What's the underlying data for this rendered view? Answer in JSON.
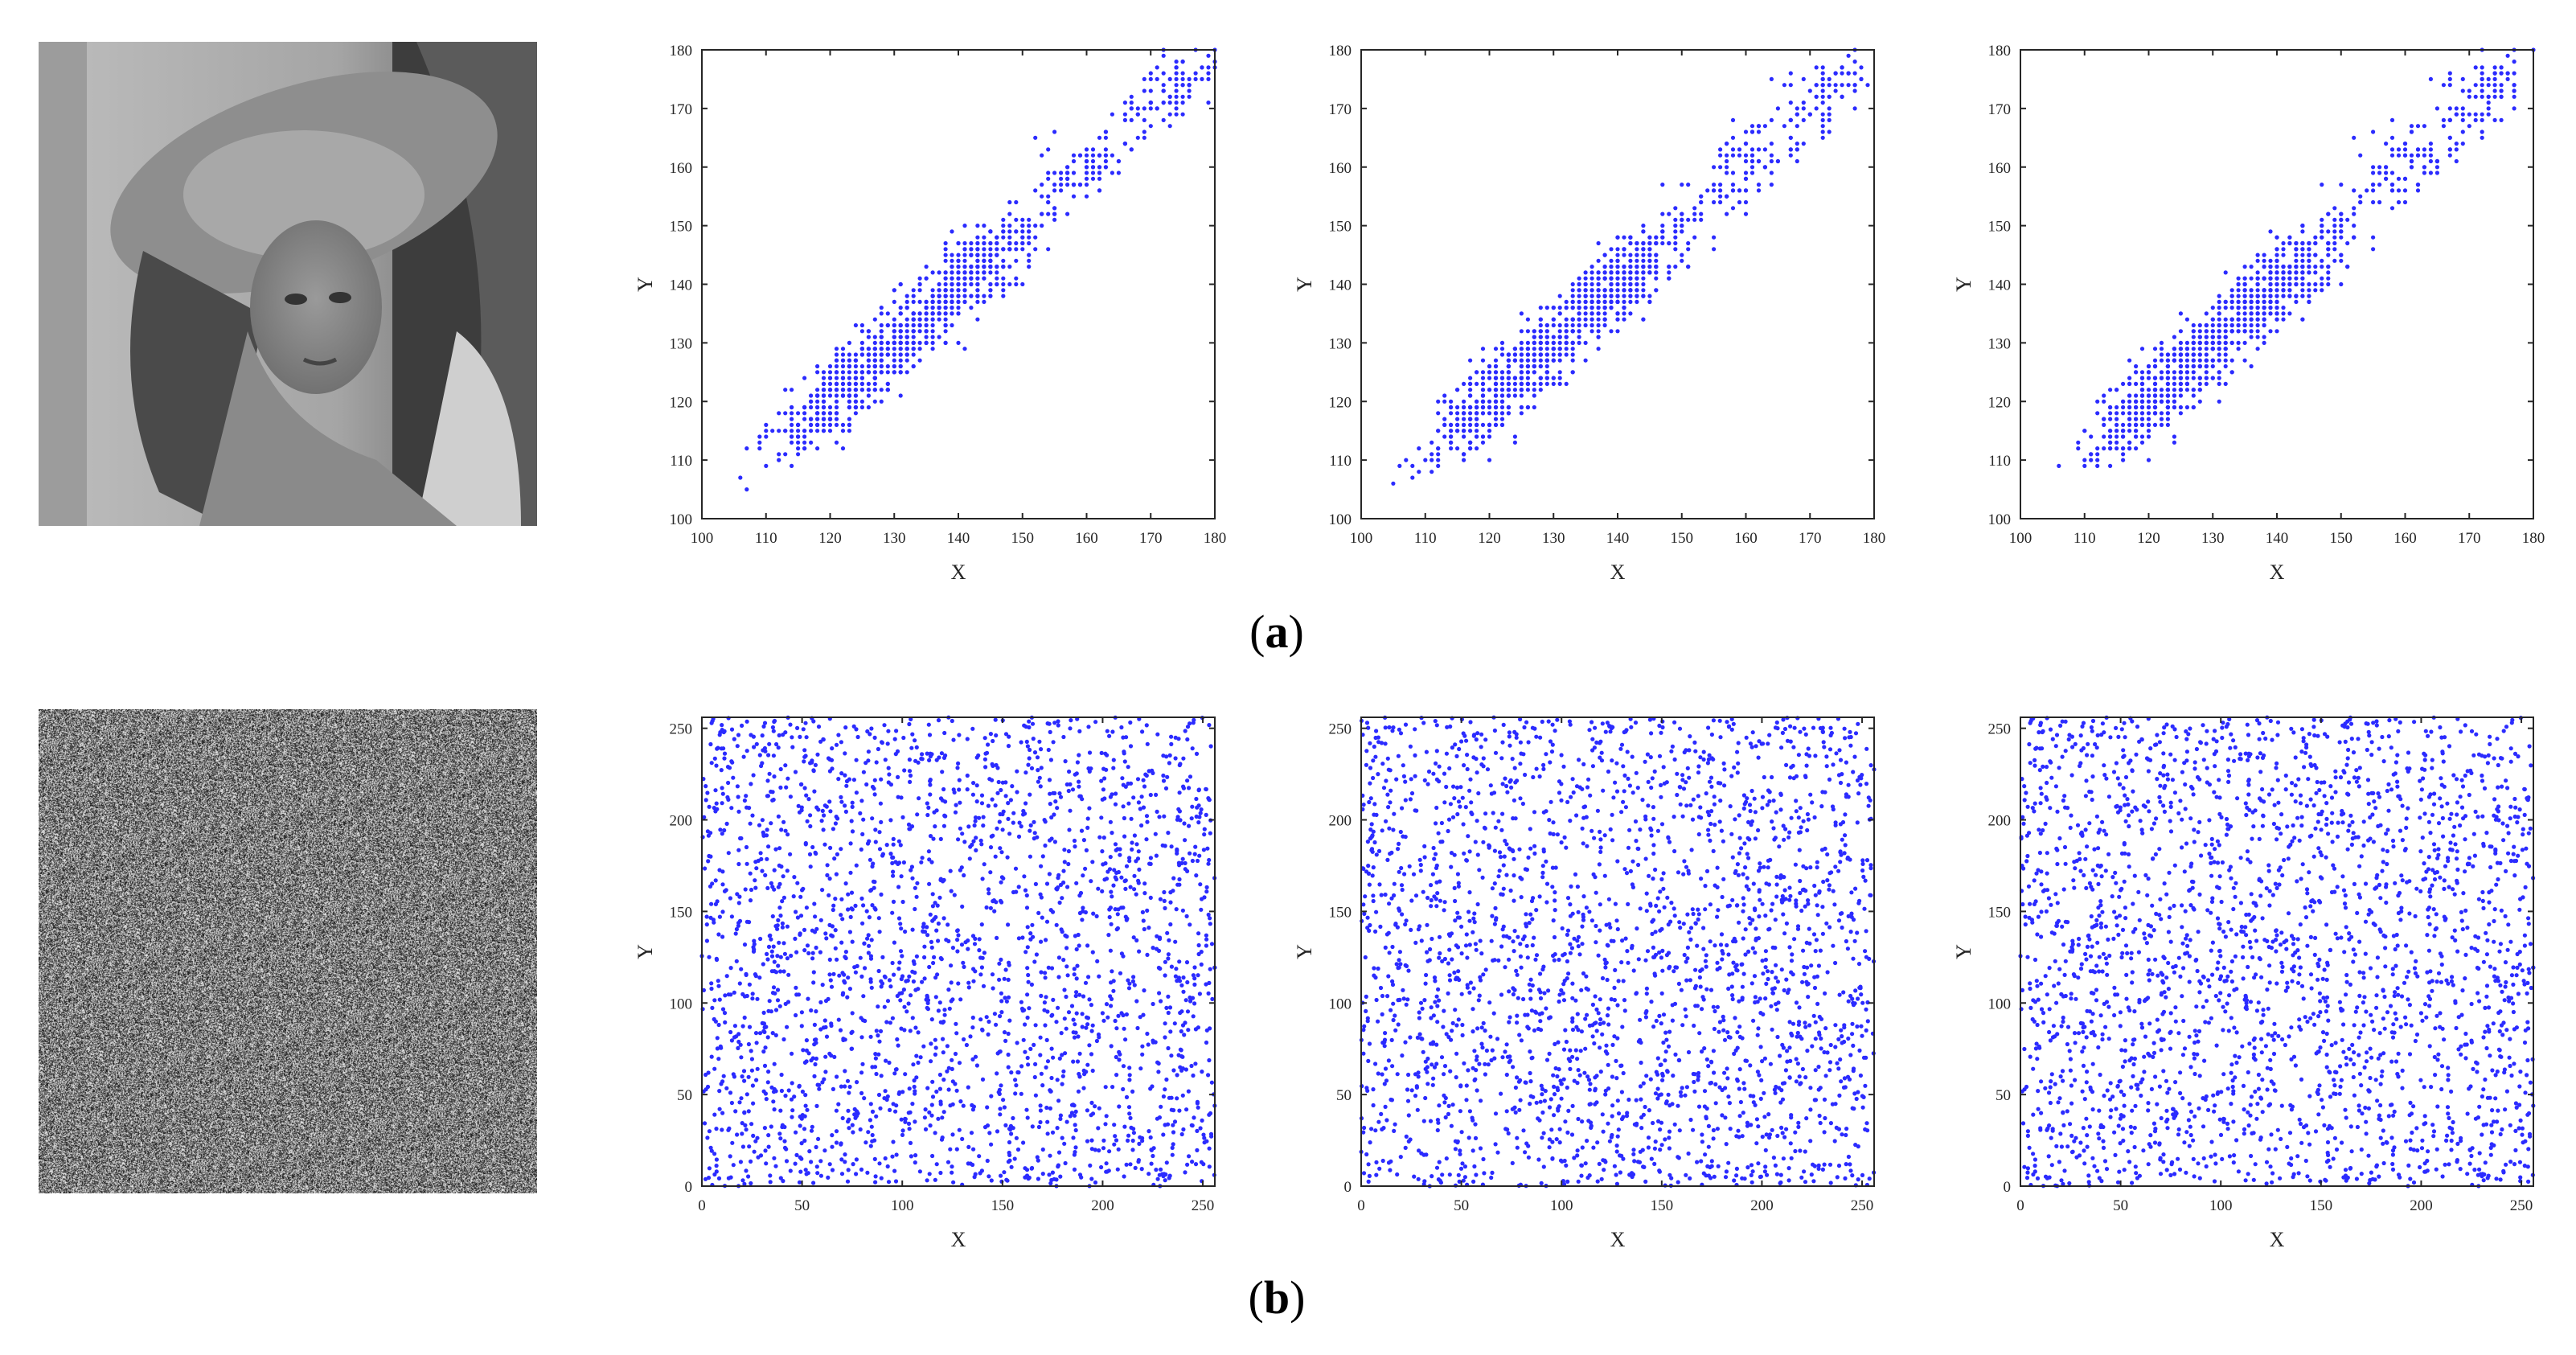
{
  "captions": {
    "a_open": "(",
    "a_letter": "a",
    "a_close": ")",
    "b_open": "(",
    "b_letter": "b",
    "b_close": ")"
  },
  "colors": {
    "points": "#2b2bff",
    "axes": "#262626"
  },
  "images": [
    {
      "row": "a",
      "content": "grayscale portrait photo (woman with hat)"
    },
    {
      "row": "b",
      "content": "grayscale noise image"
    }
  ],
  "chart_data": [
    {
      "row": "a",
      "type": "scatter",
      "direction": "horizontal",
      "xlabel": "X",
      "ylabel": "Y",
      "xlim": [
        100,
        180
      ],
      "ylim": [
        100,
        180
      ],
      "xticks": [
        100,
        110,
        120,
        130,
        140,
        150,
        160,
        170,
        180
      ],
      "yticks": [
        100,
        110,
        120,
        130,
        140,
        150,
        160,
        170,
        180
      ],
      "pattern": "strongly correlated along y = x",
      "clusters": [
        [
          120,
          120
        ],
        [
          140,
          140
        ],
        [
          160,
          160
        ],
        [
          173,
          173
        ]
      ]
    },
    {
      "row": "a",
      "type": "scatter",
      "direction": "vertical",
      "xlabel": "X",
      "ylabel": "Y",
      "xlim": [
        100,
        180
      ],
      "ylim": [
        100,
        180
      ],
      "xticks": [
        100,
        110,
        120,
        130,
        140,
        150,
        160,
        170,
        180
      ],
      "yticks": [
        100,
        110,
        120,
        130,
        140,
        150,
        160,
        170,
        180
      ],
      "pattern": "strongly correlated along y = x",
      "clusters": [
        [
          120,
          120
        ],
        [
          140,
          140
        ],
        [
          160,
          160
        ],
        [
          173,
          173
        ]
      ]
    },
    {
      "row": "a",
      "type": "scatter",
      "direction": "diagonal",
      "xlabel": "X",
      "ylabel": "Y",
      "xlim": [
        100,
        180
      ],
      "ylim": [
        100,
        180
      ],
      "xticks": [
        100,
        110,
        120,
        130,
        140,
        150,
        160,
        170,
        180
      ],
      "yticks": [
        100,
        110,
        120,
        130,
        140,
        150,
        160,
        170,
        180
      ],
      "pattern": "strongly correlated along y = x",
      "clusters": [
        [
          120,
          120
        ],
        [
          140,
          140
        ],
        [
          160,
          160
        ],
        [
          173,
          173
        ]
      ]
    },
    {
      "row": "b",
      "type": "scatter",
      "direction": "horizontal",
      "xlabel": "X",
      "ylabel": "Y",
      "xlim": [
        0,
        256
      ],
      "ylim": [
        0,
        256
      ],
      "xticks": [
        0,
        50,
        100,
        150,
        200,
        250
      ],
      "yticks": [
        0,
        50,
        100,
        150,
        200,
        250
      ],
      "pattern": "uniformly distributed, no correlation"
    },
    {
      "row": "b",
      "type": "scatter",
      "direction": "vertical",
      "xlabel": "X",
      "ylabel": "Y",
      "xlim": [
        0,
        256
      ],
      "ylim": [
        0,
        256
      ],
      "xticks": [
        0,
        50,
        100,
        150,
        200,
        250
      ],
      "yticks": [
        0,
        50,
        100,
        150,
        200,
        250
      ],
      "pattern": "uniformly distributed, no correlation"
    },
    {
      "row": "b",
      "type": "scatter",
      "direction": "diagonal",
      "xlabel": "X",
      "ylabel": "Y",
      "xlim": [
        0,
        256
      ],
      "ylim": [
        0,
        256
      ],
      "xticks": [
        0,
        50,
        100,
        150,
        200,
        250
      ],
      "yticks": [
        0,
        50,
        100,
        150,
        200,
        250
      ],
      "pattern": "uniformly distributed, no correlation"
    }
  ]
}
